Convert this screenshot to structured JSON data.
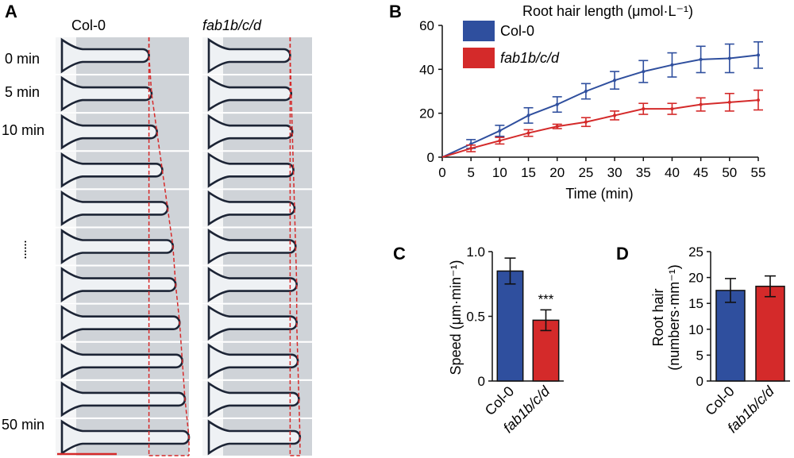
{
  "panel_a": {
    "letter": "A",
    "columns": [
      {
        "label": "Col-0",
        "italic": false
      },
      {
        "label": "fab1b/c/d",
        "italic": true
      }
    ],
    "time_labels": [
      "0 min",
      "5 min",
      "10 min",
      "50 min"
    ],
    "ellipsis": "......",
    "frame_count": 11,
    "colors": {
      "guide": "#d62a2a",
      "scale_bar": "#d62a2a",
      "hair_stroke": "#1c2435",
      "hair_fill": "#eef1f4",
      "frame_bg": "#cfd3d8"
    },
    "tip_extension": {
      "col0": [
        0.7,
        0.72,
        0.76,
        0.8,
        0.84,
        0.88,
        0.9,
        0.93,
        0.95,
        0.97,
        1.0
      ],
      "fab1bcd": [
        0.8,
        0.81,
        0.82,
        0.83,
        0.84,
        0.85,
        0.86,
        0.86,
        0.87,
        0.88,
        0.89
      ]
    }
  },
  "chart_data": [
    {
      "panel": "B",
      "type": "line",
      "title": "Root hair length (μmol·L⁻¹)",
      "xlabel": "Time (min)",
      "ylabel": "",
      "xlim": [
        0,
        55
      ],
      "ylim": [
        0,
        60
      ],
      "x_ticks": [
        0,
        5,
        10,
        15,
        20,
        25,
        30,
        35,
        40,
        45,
        50,
        55
      ],
      "y_ticks": [
        0,
        20,
        40,
        60
      ],
      "legend_position": "top-left",
      "x": [
        0,
        5,
        10,
        15,
        20,
        25,
        30,
        35,
        40,
        45,
        50,
        55
      ],
      "series": [
        {
          "name": "Col-0",
          "italic": false,
          "color": "#2f4f9e",
          "values": [
            0,
            6,
            12,
            19,
            24,
            30,
            35,
            39,
            42,
            44.5,
            45,
            46.5
          ],
          "errors": [
            0,
            2,
            2.5,
            3.5,
            3.5,
            3.5,
            4,
            5,
            5.5,
            6,
            6.5,
            6
          ]
        },
        {
          "name": "fab1b/c/d",
          "italic": true,
          "color": "#d42a2a",
          "values": [
            0,
            4,
            7.5,
            11,
            14,
            16,
            19,
            22,
            22,
            24,
            25,
            26
          ],
          "errors": [
            0,
            1.5,
            1.5,
            1.5,
            1,
            2,
            2,
            2.5,
            2.5,
            3,
            4,
            4.5
          ]
        }
      ]
    },
    {
      "panel": "C",
      "type": "bar",
      "ylabel": "Speed (μm·min⁻¹)",
      "ylim": [
        0,
        1.0
      ],
      "y_ticks": [
        "0",
        "0.5",
        "1.0"
      ],
      "categories": [
        "Col-0",
        "fab1b/c/d"
      ],
      "category_italic": [
        false,
        true
      ],
      "values": [
        0.85,
        0.47
      ],
      "errors": [
        0.1,
        0.08
      ],
      "colors": [
        "#2f4f9e",
        "#d42a2a"
      ],
      "annotation": "***"
    },
    {
      "panel": "D",
      "type": "bar",
      "ylabel_lines": [
        "Root hair",
        "(numbers·mm⁻¹)"
      ],
      "ylim": [
        0,
        25
      ],
      "y_ticks": [
        "0",
        "5",
        "10",
        "15",
        "20",
        "25"
      ],
      "categories": [
        "Col-0",
        "fab1b/c/d"
      ],
      "category_italic": [
        false,
        true
      ],
      "values": [
        17.5,
        18.3
      ],
      "errors": [
        2.3,
        2.0
      ],
      "colors": [
        "#2f4f9e",
        "#d42a2a"
      ]
    }
  ]
}
